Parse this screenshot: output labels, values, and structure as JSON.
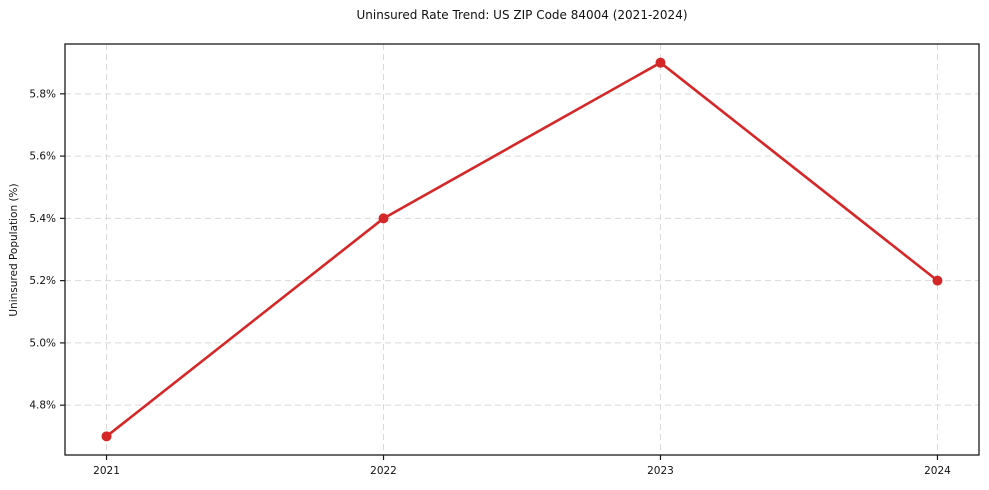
{
  "chart_data": {
    "type": "line",
    "title": "Uninsured Rate Trend: US ZIP Code 84004 (2021-2024)",
    "xlabel": "",
    "ylabel": "Uninsured Population (%)",
    "x": [
      2021,
      2022,
      2023,
      2024
    ],
    "values": [
      4.7,
      5.4,
      5.9,
      5.2
    ],
    "x_tick_labels": [
      "2021",
      "2022",
      "2023",
      "2024"
    ],
    "y_ticks": [
      4.8,
      5.0,
      5.2,
      5.4,
      5.6,
      5.8
    ],
    "y_tick_labels": [
      "4.8%",
      "5.0%",
      "5.2%",
      "5.4%",
      "5.6%",
      "5.8%"
    ],
    "xlim": [
      2020.85,
      2024.15
    ],
    "ylim": [
      4.64,
      5.96
    ],
    "grid": true,
    "grid_style": "dashed",
    "legend": false,
    "line_color": "#d62728",
    "marker_color": "#d62728",
    "grid_color": "#d9d9d9",
    "spine_color": "#1a1a1a"
  }
}
